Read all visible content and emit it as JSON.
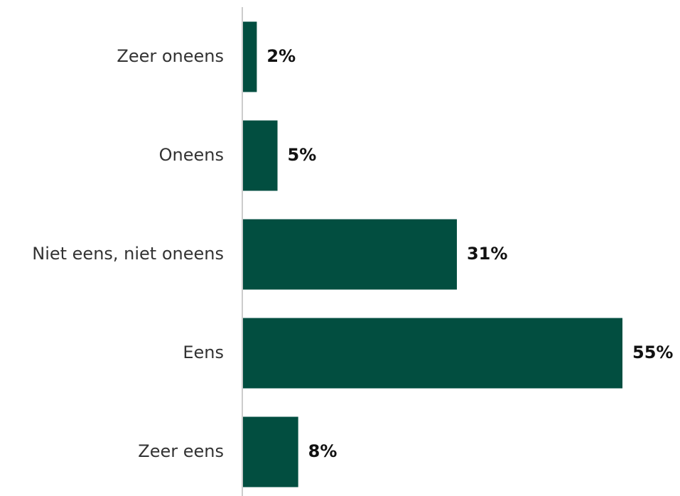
{
  "chart_data": {
    "type": "bar",
    "orientation": "horizontal",
    "categories": [
      "Zeer oneens",
      "Oneens",
      "Niet eens, niet oneens",
      "Eens",
      "Zeer eens"
    ],
    "values": [
      2,
      5,
      31,
      55,
      8
    ],
    "value_labels": [
      "2%",
      "5%",
      "31%",
      "55%",
      "8%"
    ],
    "color": "#024e40"
  }
}
